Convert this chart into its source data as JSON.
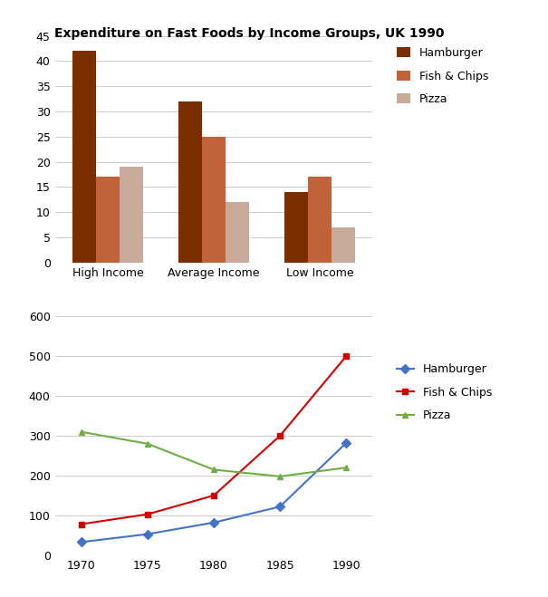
{
  "title": "Expenditure on Fast Foods by Income Groups, UK 1990",
  "bar_categories": [
    "High Income",
    "Average Income",
    "Low Income"
  ],
  "bar_hamburger": [
    42,
    32,
    14
  ],
  "bar_fish_chips": [
    17,
    25,
    17
  ],
  "bar_pizza": [
    19,
    12,
    7
  ],
  "bar_color_hamburger": "#7B2D00",
  "bar_color_fish_chips": "#C0623A",
  "bar_color_pizza": "#C9A99A",
  "bar_ylim": [
    0,
    45
  ],
  "bar_yticks": [
    0,
    5,
    10,
    15,
    20,
    25,
    30,
    35,
    40,
    45
  ],
  "line_years": [
    1970,
    1975,
    1980,
    1985,
    1990
  ],
  "line_hamburger": [
    33,
    53,
    82,
    122,
    282
  ],
  "line_fish_chips": [
    78,
    103,
    150,
    300,
    500
  ],
  "line_pizza": [
    310,
    280,
    215,
    198,
    220
  ],
  "line_color_hamburger": "#4472C4",
  "line_color_fish_chips": "#CC0000",
  "line_color_pizza": "#70AD47",
  "line_ylim": [
    0,
    600
  ],
  "line_yticks": [
    0,
    100,
    200,
    300,
    400,
    500,
    600
  ],
  "line_xticks": [
    1970,
    1975,
    1980,
    1985,
    1990
  ],
  "legend_labels": [
    "Hamburger",
    "Fish & Chips",
    "Pizza"
  ],
  "bg_color": "#FFFFFF"
}
